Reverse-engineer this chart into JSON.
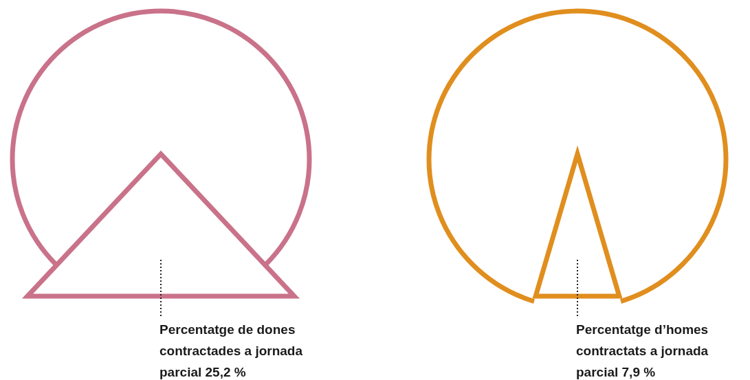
{
  "chart_data": {
    "type": "other",
    "categories": [
      "Percentatge de dones contractades a jornada parcial",
      "Percentatge d’homes contractats a jornada parcial"
    ],
    "values": [
      25.2,
      7.9
    ],
    "value_labels": [
      "25,2 %",
      "7,9 %"
    ],
    "data_labels": true,
    "colors": [
      "#c9728a",
      "#e08e1e"
    ]
  }
}
